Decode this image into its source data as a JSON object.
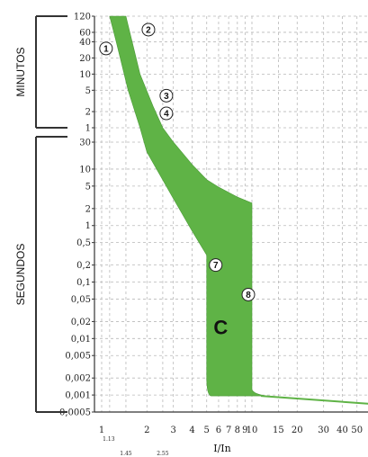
{
  "chart_data": {
    "type": "area",
    "title": "",
    "xlabel": "I/In",
    "x_scale": "log",
    "xlim": [
      1,
      60
    ],
    "x_ticks": [
      "1",
      "2",
      "3",
      "4",
      "5",
      "6",
      "7",
      "8",
      "9",
      "10",
      "15",
      "20",
      "30",
      "40",
      "50"
    ],
    "x_sub_ticks": [
      "1.13",
      "1.45",
      "2.55"
    ],
    "y_scale": "log",
    "y_groups": [
      {
        "label": "MINUTOS",
        "ticks": [
          "120",
          "60",
          "40",
          "20",
          "10",
          "5",
          "2",
          "1"
        ],
        "range": [
          1,
          120
        ]
      },
      {
        "label": "SEGUNDOS",
        "ticks": [
          "30",
          "10",
          "5",
          "2",
          "1",
          "0,5",
          "0,2",
          "0,1",
          "0,05",
          "0,02",
          "0,01",
          "0,005",
          "0,002",
          "0,001",
          "0,0005"
        ],
        "range": [
          0.0005,
          30
        ]
      }
    ],
    "curve_label": "C",
    "band_color": "#5fb346",
    "grid": true,
    "band_upper_boundary": [
      {
        "x": 1.45,
        "min": 120
      },
      {
        "x": 1.8,
        "min": 10
      },
      {
        "x": 2.2,
        "min": 2.5
      },
      {
        "x": 2.55,
        "min": 1
      },
      {
        "x": 3,
        "sec": 30
      },
      {
        "x": 4,
        "sec": 12
      },
      {
        "x": 5,
        "sec": 6.5
      },
      {
        "x": 6,
        "sec": 4.8
      },
      {
        "x": 8,
        "sec": 3.2
      },
      {
        "x": 10,
        "sec": 2.5
      }
    ],
    "band_lower_boundary": [
      {
        "x": 1.13,
        "min": 120
      },
      {
        "x": 1.25,
        "min": 40
      },
      {
        "x": 1.5,
        "min": 5
      },
      {
        "x": 1.8,
        "min": 1
      },
      {
        "x": 2,
        "sec": 20
      },
      {
        "x": 3,
        "sec": 3
      },
      {
        "x": 4,
        "sec": 0.8
      },
      {
        "x": 5,
        "sec": 0.3
      }
    ],
    "band_instantaneous": {
      "x_min": 5,
      "x_max": 10,
      "t_min_sec": 0.001
    },
    "tail_curve": [
      {
        "x": 10,
        "sec": 0.001
      },
      {
        "x": 60,
        "sec": 0.0007
      }
    ],
    "markers": [
      {
        "label": "1",
        "x": 1.13,
        "min": 30
      },
      {
        "label": "2",
        "x": 1.45,
        "min": 60
      },
      {
        "label": "3",
        "x": 2.55,
        "min": 5
      },
      {
        "label": "4",
        "x": 2.55,
        "min": 2
      },
      {
        "label": "7",
        "x": 5,
        "sec": 0.2
      },
      {
        "label": "8",
        "x": 10,
        "sec": 0.06
      }
    ]
  }
}
